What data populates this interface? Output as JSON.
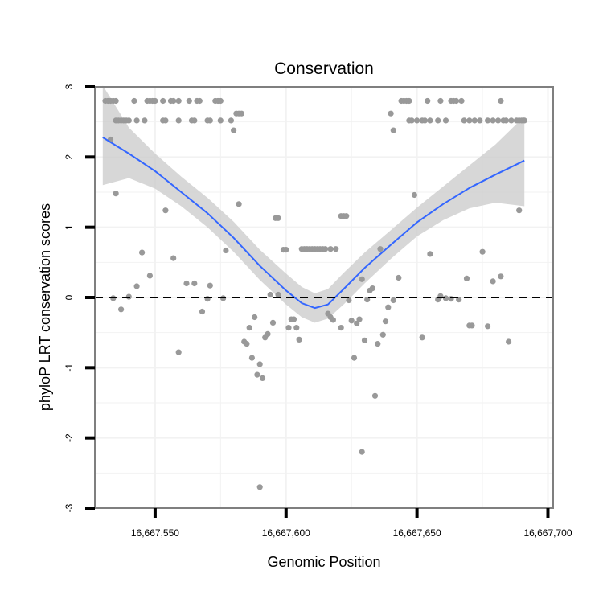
{
  "chart_data": {
    "type": "scatter",
    "title": "Conservation",
    "xlabel": "Genomic Position",
    "ylabel": "phyloP LRT conservation scores",
    "xlim": [
      16667527,
      16667702
    ],
    "ylim": [
      -3,
      3
    ],
    "x_ticks": [
      16667550,
      16667600,
      16667650,
      16667700
    ],
    "x_tick_labels": [
      "16,667,550",
      "16,667,600",
      "16,667,650",
      "16,667,700"
    ],
    "y_ticks": [
      -3,
      -2,
      -1,
      0,
      1,
      2,
      3
    ],
    "y_tick_labels": [
      "-3",
      "-2",
      "-1",
      "0",
      "1",
      "2",
      "3"
    ],
    "reference_line": {
      "y": 0,
      "style": "dashed"
    },
    "grid": true,
    "colors": {
      "points": "#999999",
      "smooth_line": "#3366ff",
      "ribbon": "#cccccc",
      "frame": "#7f7f7f",
      "grid": "#f2f2f2"
    },
    "series": [
      {
        "name": "scores",
        "points": [
          [
            16667531,
            2.8
          ],
          [
            16667532,
            2.8
          ],
          [
            16667533,
            2.8
          ],
          [
            16667534,
            2.8
          ],
          [
            16667535,
            2.8
          ],
          [
            16667542,
            2.8
          ],
          [
            16667547,
            2.8
          ],
          [
            16667548,
            2.8
          ],
          [
            16667549,
            2.8
          ],
          [
            16667550,
            2.8
          ],
          [
            16667553,
            2.8
          ],
          [
            16667556,
            2.8
          ],
          [
            16667557,
            2.8
          ],
          [
            16667559,
            2.8
          ],
          [
            16667563,
            2.8
          ],
          [
            16667566,
            2.8
          ],
          [
            16667567,
            2.8
          ],
          [
            16667573,
            2.8
          ],
          [
            16667574,
            2.8
          ],
          [
            16667575,
            2.8
          ],
          [
            16667535,
            2.52
          ],
          [
            16667536,
            2.52
          ],
          [
            16667537,
            2.52
          ],
          [
            16667538,
            2.52
          ],
          [
            16667539,
            2.52
          ],
          [
            16667540,
            2.52
          ],
          [
            16667543,
            2.52
          ],
          [
            16667546,
            2.52
          ],
          [
            16667553,
            2.52
          ],
          [
            16667554,
            2.52
          ],
          [
            16667559,
            2.52
          ],
          [
            16667564,
            2.52
          ],
          [
            16667565,
            2.52
          ],
          [
            16667570,
            2.52
          ],
          [
            16667571,
            2.52
          ],
          [
            16667575,
            2.52
          ],
          [
            16667579,
            2.52
          ],
          [
            16667581,
            2.62
          ],
          [
            16667582,
            2.62
          ],
          [
            16667583,
            2.62
          ],
          [
            16667580,
            2.38
          ],
          [
            16667533,
            2.25
          ],
          [
            16667535,
            1.48
          ],
          [
            16667582,
            1.33
          ],
          [
            16667554,
            1.24
          ],
          [
            16667577,
            0.67
          ],
          [
            16667545,
            0.64
          ],
          [
            16667557,
            0.56
          ],
          [
            16667548,
            0.31
          ],
          [
            16667562,
            0.2
          ],
          [
            16667565,
            0.2
          ],
          [
            16667571,
            0.17
          ],
          [
            16667543,
            0.16
          ],
          [
            16667540,
            0.01
          ],
          [
            16667534,
            -0.01
          ],
          [
            16667570,
            -0.02
          ],
          [
            16667576,
            -0.01
          ],
          [
            16667568,
            -0.2
          ],
          [
            16667537,
            -0.17
          ],
          [
            16667559,
            -0.78
          ],
          [
            16667584,
            -0.63
          ],
          [
            16667585,
            -0.66
          ],
          [
            16667586,
            -0.43
          ],
          [
            16667588,
            -0.28
          ],
          [
            16667590,
            -0.95
          ],
          [
            16667589,
            -1.1
          ],
          [
            16667587,
            -0.86
          ],
          [
            16667591,
            -1.15
          ],
          [
            16667592,
            -0.57
          ],
          [
            16667593,
            -0.52
          ],
          [
            16667594,
            0.04
          ],
          [
            16667595,
            -0.36
          ],
          [
            16667596,
            1.13
          ],
          [
            16667597,
            1.13
          ],
          [
            16667597,
            0.04
          ],
          [
            16667599,
            0.68
          ],
          [
            16667600,
            0.68
          ],
          [
            16667601,
            -0.43
          ],
          [
            16667602,
            -0.31
          ],
          [
            16667603,
            -0.31
          ],
          [
            16667604,
            -0.43
          ],
          [
            16667606,
            0.69
          ],
          [
            16667607,
            0.69
          ],
          [
            16667608,
            0.69
          ],
          [
            16667609,
            0.69
          ],
          [
            16667610,
            0.69
          ],
          [
            16667611,
            0.69
          ],
          [
            16667612,
            0.69
          ],
          [
            16667613,
            0.69
          ],
          [
            16667614,
            0.69
          ],
          [
            16667615,
            0.69
          ],
          [
            16667617,
            0.69
          ],
          [
            16667619,
            0.69
          ],
          [
            16667616,
            -0.23
          ],
          [
            16667617,
            -0.28
          ],
          [
            16667618,
            -0.32
          ],
          [
            16667621,
            1.16
          ],
          [
            16667622,
            1.16
          ],
          [
            16667623,
            1.16
          ],
          [
            16667624,
            -0.04
          ],
          [
            16667625,
            -0.33
          ],
          [
            16667626,
            -0.86
          ],
          [
            16667627,
            -0.37
          ],
          [
            16667628,
            -0.31
          ],
          [
            16667629,
            0.26
          ],
          [
            16667630,
            -0.61
          ],
          [
            16667631,
            -0.03
          ],
          [
            16667632,
            0.1
          ],
          [
            16667633,
            0.13
          ],
          [
            16667634,
            -1.4
          ],
          [
            16667635,
            -0.66
          ],
          [
            16667636,
            0.69
          ],
          [
            16667637,
            -0.53
          ],
          [
            16667638,
            -0.34
          ],
          [
            16667639,
            -0.14
          ],
          [
            16667641,
            -0.04
          ],
          [
            16667643,
            0.28
          ],
          [
            16667629,
            -2.2
          ],
          [
            16667590,
            -2.7
          ],
          [
            16667605,
            -0.6
          ],
          [
            16667621,
            -0.43
          ],
          [
            16667640,
            2.62
          ],
          [
            16667641,
            2.38
          ],
          [
            16667644,
            2.8
          ],
          [
            16667645,
            2.8
          ],
          [
            16667646,
            2.8
          ],
          [
            16667647,
            2.8
          ],
          [
            16667654,
            2.8
          ],
          [
            16667659,
            2.8
          ],
          [
            16667663,
            2.8
          ],
          [
            16667664,
            2.8
          ],
          [
            16667665,
            2.8
          ],
          [
            16667667,
            2.8
          ],
          [
            16667682,
            2.8
          ],
          [
            16667647,
            2.52
          ],
          [
            16667648,
            2.52
          ],
          [
            16667650,
            2.52
          ],
          [
            16667652,
            2.52
          ],
          [
            16667653,
            2.52
          ],
          [
            16667655,
            2.52
          ],
          [
            16667658,
            2.52
          ],
          [
            16667661,
            2.52
          ],
          [
            16667668,
            2.52
          ],
          [
            16667670,
            2.52
          ],
          [
            16667672,
            2.52
          ],
          [
            16667674,
            2.52
          ],
          [
            16667677,
            2.52
          ],
          [
            16667679,
            2.52
          ],
          [
            16667681,
            2.52
          ],
          [
            16667683,
            2.52
          ],
          [
            16667684,
            2.52
          ],
          [
            16667686,
            2.52
          ],
          [
            16667688,
            2.52
          ],
          [
            16667689,
            2.52
          ],
          [
            16667690,
            2.52
          ],
          [
            16667691,
            2.52
          ],
          [
            16667649,
            1.46
          ],
          [
            16667655,
            0.62
          ],
          [
            16667652,
            -0.57
          ],
          [
            16667658,
            -0.03
          ],
          [
            16667659,
            0.02
          ],
          [
            16667661,
            -0.01
          ],
          [
            16667663,
            -0.02
          ],
          [
            16667666,
            -0.03
          ],
          [
            16667669,
            0.27
          ],
          [
            16667670,
            -0.4
          ],
          [
            16667671,
            -0.4
          ],
          [
            16667675,
            0.65
          ],
          [
            16667677,
            -0.41
          ],
          [
            16667679,
            0.23
          ],
          [
            16667682,
            0.3
          ],
          [
            16667685,
            -0.63
          ],
          [
            16667689,
            1.24
          ]
        ]
      }
    ],
    "smooth": {
      "method": "loess",
      "x": [
        16667530,
        16667540,
        16667550,
        16667560,
        16667570,
        16667580,
        16667590,
        16667600,
        16667606,
        16667611,
        16667616,
        16667622,
        16667630,
        16667640,
        16667650,
        16667660,
        16667670,
        16667680,
        16667691
      ],
      "y": [
        2.28,
        2.05,
        1.8,
        1.5,
        1.2,
        0.85,
        0.45,
        0.1,
        -0.08,
        -0.15,
        -0.1,
        0.12,
        0.42,
        0.75,
        1.07,
        1.33,
        1.56,
        1.75,
        1.95
      ],
      "ymin": [
        1.6,
        1.7,
        1.55,
        1.3,
        1.0,
        0.65,
        0.25,
        -0.1,
        -0.28,
        -0.36,
        -0.3,
        -0.1,
        0.2,
        0.55,
        0.87,
        1.1,
        1.27,
        1.35,
        1.3
      ],
      "ymax": [
        3.02,
        2.42,
        2.05,
        1.72,
        1.42,
        1.08,
        0.68,
        0.34,
        0.15,
        0.06,
        0.12,
        0.35,
        0.64,
        0.96,
        1.28,
        1.58,
        1.88,
        2.18,
        2.58
      ]
    }
  }
}
